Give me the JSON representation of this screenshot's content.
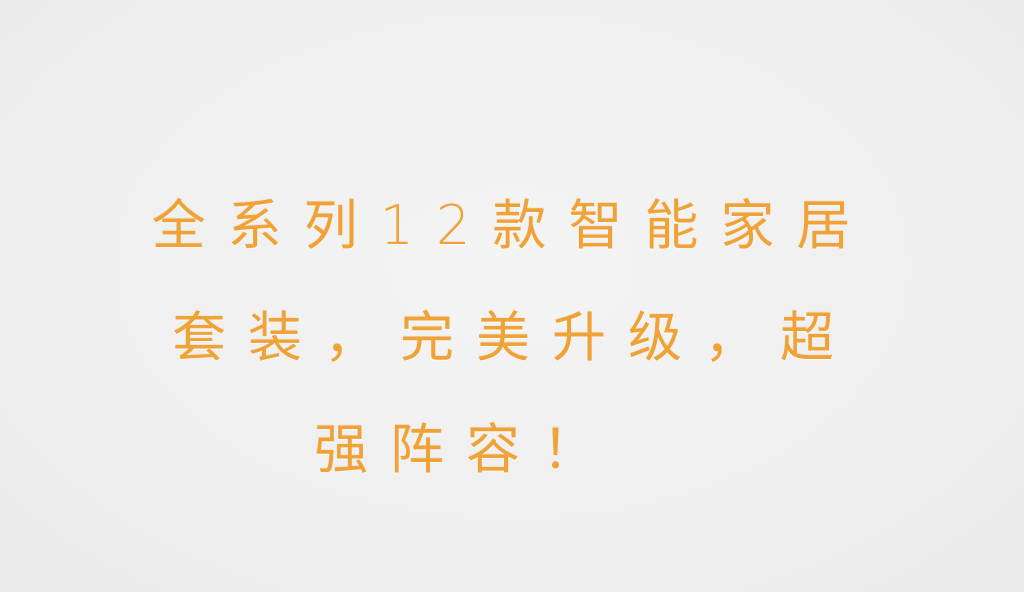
{
  "slide": {
    "headline": {
      "line1": "全系列12款智能家居",
      "line2": "套装，完美升级，超",
      "line3": "强阵容！"
    },
    "colors": {
      "background": "#efefef",
      "text": "#f0a236"
    }
  }
}
